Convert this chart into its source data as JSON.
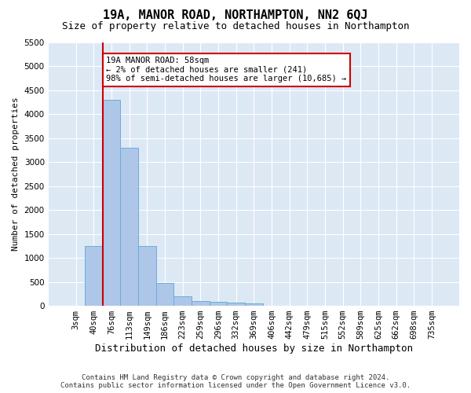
{
  "title1": "19A, MANOR ROAD, NORTHAMPTON, NN2 6QJ",
  "title2": "Size of property relative to detached houses in Northampton",
  "xlabel": "Distribution of detached houses by size in Northampton",
  "ylabel": "Number of detached properties",
  "bin_labels": [
    "3sqm",
    "40sqm",
    "76sqm",
    "113sqm",
    "149sqm",
    "186sqm",
    "223sqm",
    "259sqm",
    "296sqm",
    "332sqm",
    "369sqm",
    "406sqm",
    "442sqm",
    "479sqm",
    "515sqm",
    "552sqm",
    "589sqm",
    "625sqm",
    "662sqm",
    "698sqm",
    "735sqm"
  ],
  "values": [
    0,
    1250,
    4300,
    3300,
    1250,
    475,
    200,
    100,
    80,
    60,
    50,
    0,
    0,
    0,
    0,
    0,
    0,
    0,
    0,
    0,
    0
  ],
  "bar_color": "#aec6e8",
  "bar_edge_color": "#6aaed6",
  "property_line_color": "#cc0000",
  "annotation_text": "19A MANOR ROAD: 58sqm\n← 2% of detached houses are smaller (241)\n98% of semi-detached houses are larger (10,685) →",
  "annotation_box_color": "#ffffff",
  "annotation_box_edge": "#cc0000",
  "ylim": [
    0,
    5500
  ],
  "yticks": [
    0,
    500,
    1000,
    1500,
    2000,
    2500,
    3000,
    3500,
    4000,
    4500,
    5000,
    5500
  ],
  "background_color": "#dde8f5",
  "footer1": "Contains HM Land Registry data © Crown copyright and database right 2024.",
  "footer2": "Contains public sector information licensed under the Open Government Licence v3.0.",
  "title1_fontsize": 11,
  "title2_fontsize": 9,
  "xlabel_fontsize": 9,
  "ylabel_fontsize": 8,
  "tick_fontsize": 7.5
}
